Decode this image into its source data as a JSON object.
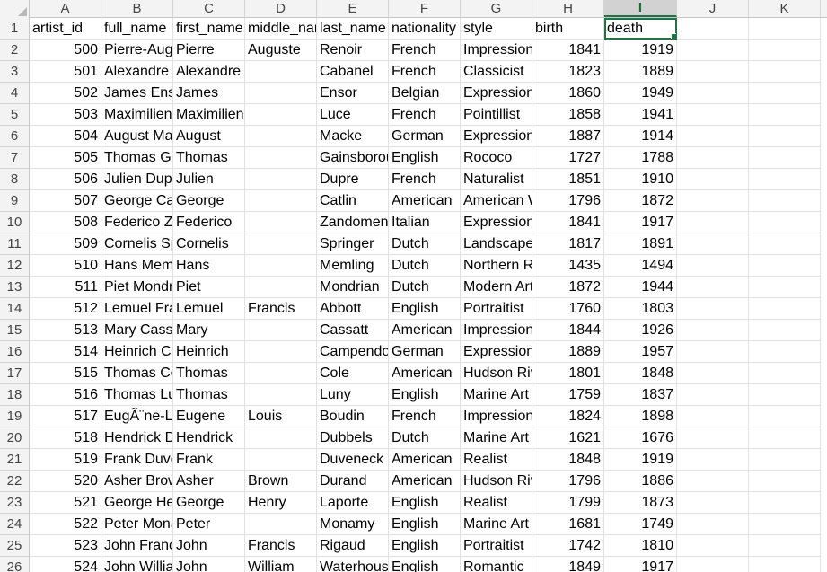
{
  "spreadsheet": {
    "columns": [
      "A",
      "B",
      "C",
      "D",
      "E",
      "F",
      "G",
      "H",
      "I",
      "J",
      "K"
    ],
    "active_column": "I",
    "selected_cell": "I1",
    "numeric_columns": [
      0,
      7,
      8
    ],
    "rows": [
      {
        "n": "1",
        "cells": [
          "artist_id",
          "full_name",
          "first_name",
          "middle_name",
          "last_name",
          "nationality",
          "style",
          "birth",
          "death",
          "",
          ""
        ]
      },
      {
        "n": "2",
        "cells": [
          "500",
          "Pierre-Auguste Renoir",
          "Pierre",
          "Auguste",
          "Renoir",
          "French",
          "Impressionist",
          "1841",
          "1919",
          "",
          ""
        ]
      },
      {
        "n": "3",
        "cells": [
          "501",
          "Alexandre Cabanel",
          "Alexandre",
          "",
          "Cabanel",
          "French",
          "Classicist",
          "1823",
          "1889",
          "",
          ""
        ]
      },
      {
        "n": "4",
        "cells": [
          "502",
          "James Ensor",
          "James",
          "",
          "Ensor",
          "Belgian",
          "Expressionist",
          "1860",
          "1949",
          "",
          ""
        ]
      },
      {
        "n": "5",
        "cells": [
          "503",
          "Maximilien Luce",
          "Maximilien",
          "",
          "Luce",
          "French",
          "Pointillist",
          "1858",
          "1941",
          "",
          ""
        ]
      },
      {
        "n": "6",
        "cells": [
          "504",
          "August Macke",
          "August",
          "",
          "Macke",
          "German",
          "Expressionist",
          "1887",
          "1914",
          "",
          ""
        ]
      },
      {
        "n": "7",
        "cells": [
          "505",
          "Thomas Gainsborough",
          "Thomas",
          "",
          "Gainsborough",
          "English",
          "Rococo",
          "1727",
          "1788",
          "",
          ""
        ]
      },
      {
        "n": "8",
        "cells": [
          "506",
          "Julien Dupre",
          "Julien",
          "",
          "Dupre",
          "French",
          "Naturalist",
          "1851",
          "1910",
          "",
          ""
        ]
      },
      {
        "n": "9",
        "cells": [
          "507",
          "George Catlin",
          "George",
          "",
          "Catlin",
          "American",
          "American Western",
          "1796",
          "1872",
          "",
          ""
        ]
      },
      {
        "n": "10",
        "cells": [
          "508",
          "Federico Zandomeneghi",
          "Federico",
          "",
          "Zandomeneghi",
          "Italian",
          "Expressionist",
          "1841",
          "1917",
          "",
          ""
        ]
      },
      {
        "n": "11",
        "cells": [
          "509",
          "Cornelis Springer",
          "Cornelis",
          "",
          "Springer",
          "Dutch",
          "Landscape",
          "1817",
          "1891",
          "",
          ""
        ]
      },
      {
        "n": "12",
        "cells": [
          "510",
          "Hans Memling",
          "Hans",
          "",
          "Memling",
          "Dutch",
          "Northern Renaissance",
          "1435",
          "1494",
          "",
          ""
        ]
      },
      {
        "n": "13",
        "cells": [
          "511",
          "Piet Mondrian",
          "Piet",
          "",
          "Mondrian",
          "Dutch",
          "Modern Art",
          "1872",
          "1944",
          "",
          ""
        ]
      },
      {
        "n": "14",
        "cells": [
          "512",
          "Lemuel Francis Abbott",
          "Lemuel",
          "Francis",
          "Abbott",
          "English",
          "Portraitist",
          "1760",
          "1803",
          "",
          ""
        ]
      },
      {
        "n": "15",
        "cells": [
          "513",
          "Mary Cassatt",
          "Mary",
          "",
          "Cassatt",
          "American",
          "Impressionist",
          "1844",
          "1926",
          "",
          ""
        ]
      },
      {
        "n": "16",
        "cells": [
          "514",
          "Heinrich Campendonk",
          "Heinrich",
          "",
          "Campendonk",
          "German",
          "Expressionist",
          "1889",
          "1957",
          "",
          ""
        ]
      },
      {
        "n": "17",
        "cells": [
          "515",
          "Thomas Cole",
          "Thomas",
          "",
          "Cole",
          "American",
          "Hudson River School",
          "1801",
          "1848",
          "",
          ""
        ]
      },
      {
        "n": "18",
        "cells": [
          "516",
          "Thomas Luny",
          "Thomas",
          "",
          "Luny",
          "English",
          "Marine Art",
          "1759",
          "1837",
          "",
          ""
        ]
      },
      {
        "n": "19",
        "cells": [
          "517",
          "EugÃ¨ne-Louis Boudin",
          "Eugene",
          "Louis",
          "Boudin",
          "French",
          "Impressionist",
          "1824",
          "1898",
          "",
          ""
        ]
      },
      {
        "n": "20",
        "cells": [
          "518",
          "Hendrick Dubbels",
          "Hendrick",
          "",
          "Dubbels",
          "Dutch",
          "Marine Art",
          "1621",
          "1676",
          "",
          ""
        ]
      },
      {
        "n": "21",
        "cells": [
          "519",
          "Frank Duveneck",
          "Frank",
          "",
          "Duveneck",
          "American",
          "Realist",
          "1848",
          "1919",
          "",
          ""
        ]
      },
      {
        "n": "22",
        "cells": [
          "520",
          "Asher Brown Durand",
          "Asher",
          "Brown",
          "Durand",
          "American",
          "Hudson River School",
          "1796",
          "1886",
          "",
          ""
        ]
      },
      {
        "n": "23",
        "cells": [
          "521",
          "George Henry Laporte",
          "George",
          "Henry",
          "Laporte",
          "English",
          "Realist",
          "1799",
          "1873",
          "",
          ""
        ]
      },
      {
        "n": "24",
        "cells": [
          "522",
          "Peter Monamy",
          "Peter",
          "",
          "Monamy",
          "English",
          "Marine Art",
          "1681",
          "1749",
          "",
          ""
        ]
      },
      {
        "n": "25",
        "cells": [
          "523",
          "John Francis Rigaud",
          "John",
          "Francis",
          "Rigaud",
          "English",
          "Portraitist",
          "1742",
          "1810",
          "",
          ""
        ]
      },
      {
        "n": "26",
        "cells": [
          "524",
          "John William Waterhouse",
          "John",
          "William",
          "Waterhouse",
          "English",
          "Romantic",
          "1849",
          "1917",
          "",
          ""
        ]
      }
    ]
  }
}
